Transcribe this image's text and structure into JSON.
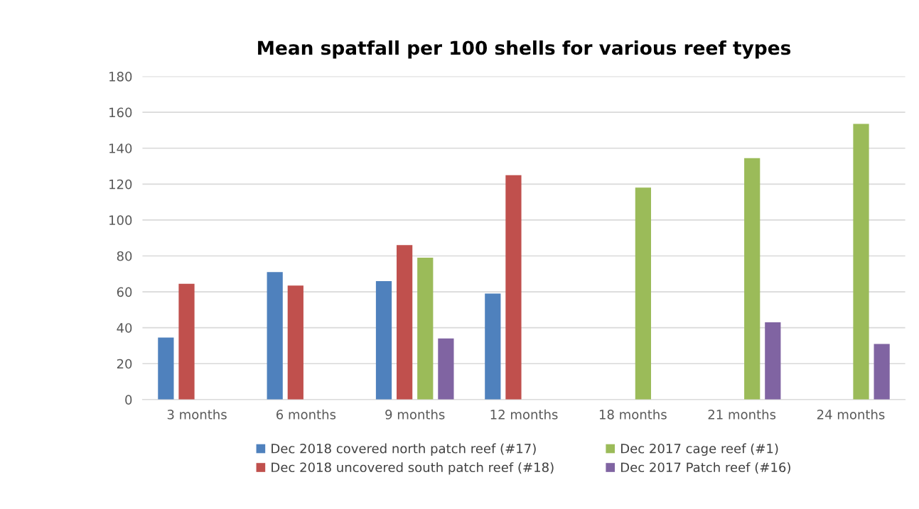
{
  "chart_data": {
    "type": "bar",
    "title": "Mean spatfall per 100 shells for various reef types",
    "categories": [
      "3 months",
      "6 months",
      "9 months",
      "12 months",
      "18 months",
      "21 months",
      "24 months"
    ],
    "series": [
      {
        "name": "Dec 2018 covered north patch reef (#17)",
        "color": "#4f81bd",
        "values": [
          34.5,
          71,
          66,
          59,
          null,
          null,
          null
        ]
      },
      {
        "name": "Dec 2018 uncovered south patch reef (#18)",
        "color": "#c0504d",
        "values": [
          64.5,
          63.5,
          86,
          125,
          null,
          null,
          null
        ]
      },
      {
        "name": "Dec 2017 cage reef (#1)",
        "color": "#9bbb59",
        "values": [
          null,
          null,
          79,
          null,
          118,
          134.5,
          153.5
        ]
      },
      {
        "name": "Dec 2017 Patch reef (#16)",
        "color": "#8064a2",
        "values": [
          null,
          null,
          34,
          null,
          null,
          43,
          31
        ]
      }
    ],
    "ylim": [
      0,
      180
    ],
    "yticks": [
      0,
      20,
      40,
      60,
      80,
      100,
      120,
      140,
      160,
      180
    ],
    "grid": "y",
    "legend": "bottom"
  }
}
